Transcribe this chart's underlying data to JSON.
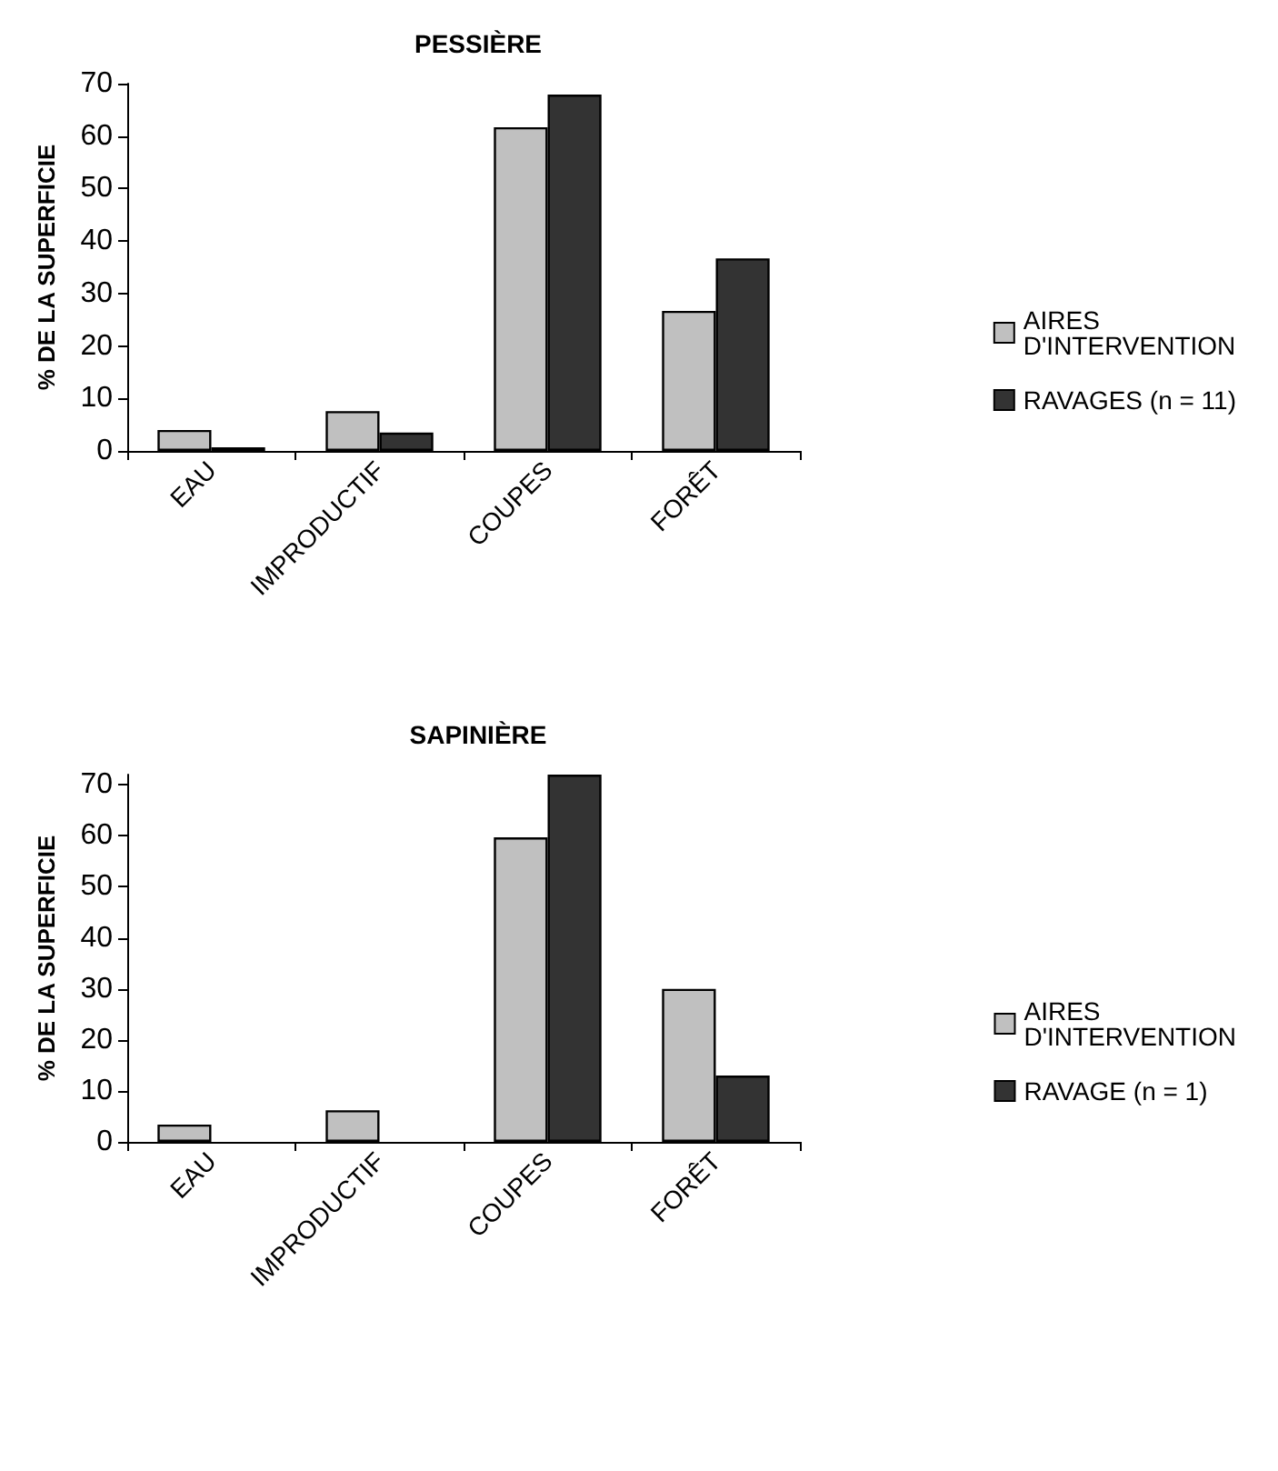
{
  "chart_data": [
    {
      "type": "bar",
      "title": "PESSIÈRE",
      "ylabel": "% DE LA SUPERFICIE",
      "categories": [
        "EAU",
        "IMPRODUCTIF",
        "COUPES",
        "FORÊT"
      ],
      "series": [
        {
          "name": "AIRES D'INTERVENTION",
          "color": "#c0c0c0",
          "values": [
            4.0,
            7.6,
            61.7,
            26.7
          ]
        },
        {
          "name": "RAVAGES (n = 11)",
          "color": "#333333",
          "values": [
            0.7,
            3.5,
            67.9,
            36.7
          ]
        }
      ],
      "ylim": [
        0,
        70
      ],
      "yticks": [
        0,
        10,
        20,
        30,
        40,
        50,
        60,
        70
      ],
      "grid": false,
      "legend": "right"
    },
    {
      "type": "bar",
      "title": "SAPINIÈRE",
      "ylabel": "% DE LA SUPERFICIE",
      "categories": [
        "EAU",
        "IMPRODUCTIF",
        "COUPES",
        "FORÊT"
      ],
      "series": [
        {
          "name": "AIRES D'INTERVENTION",
          "color": "#c0c0c0",
          "values": [
            3.4,
            6.2,
            59.7,
            30.0
          ]
        },
        {
          "name": "RAVAGE (n = 1)",
          "color": "#333333",
          "values": [
            null,
            null,
            72,
            13.0
          ]
        }
      ],
      "ylim": [
        0,
        72
      ],
      "yticks": [
        0,
        10,
        20,
        30,
        40,
        50,
        60,
        70
      ],
      "grid": false,
      "legend": "right"
    }
  ]
}
